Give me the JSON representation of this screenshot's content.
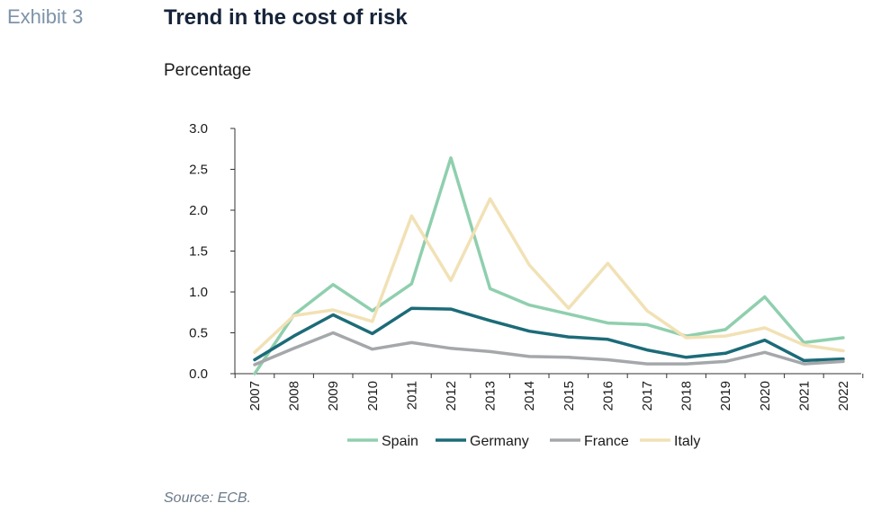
{
  "exhibit_label": "Exhibit 3",
  "title": "Trend in the cost of risk",
  "subtitle": "Percentage",
  "source": "Source: ECB.",
  "chart_data": {
    "type": "line",
    "x": [
      "2007",
      "2008",
      "2009",
      "2010",
      "2011",
      "2012",
      "2013",
      "2014",
      "2015",
      "2016",
      "2017",
      "2018",
      "2019",
      "2020",
      "2021",
      "2022"
    ],
    "ylim": [
      0,
      3.0
    ],
    "yticks": [
      "0.0",
      "0.5",
      "1.0",
      "1.5",
      "2.0",
      "2.5",
      "3.0"
    ],
    "grid": false,
    "legend_position": "bottom",
    "series": [
      {
        "name": "Spain",
        "color": "#8fcfae",
        "values": [
          0.0,
          0.72,
          1.09,
          0.77,
          1.1,
          2.64,
          1.04,
          0.84,
          0.73,
          0.62,
          0.6,
          0.46,
          0.54,
          0.94,
          0.38,
          0.44
        ]
      },
      {
        "name": "Germany",
        "color": "#1c6b78",
        "values": [
          0.17,
          0.46,
          0.72,
          0.49,
          0.8,
          0.79,
          0.65,
          0.52,
          0.45,
          0.42,
          0.29,
          0.2,
          0.25,
          0.41,
          0.16,
          0.18
        ]
      },
      {
        "name": "France",
        "color": "#a5a8ab",
        "values": [
          0.11,
          0.31,
          0.5,
          0.3,
          0.38,
          0.31,
          0.27,
          0.21,
          0.2,
          0.17,
          0.12,
          0.12,
          0.15,
          0.26,
          0.12,
          0.15
        ]
      },
      {
        "name": "Italy",
        "color": "#f1e1b5",
        "values": [
          0.26,
          0.71,
          0.78,
          0.64,
          1.93,
          1.14,
          2.14,
          1.33,
          0.8,
          1.35,
          0.77,
          0.44,
          0.46,
          0.56,
          0.35,
          0.28
        ]
      }
    ]
  }
}
